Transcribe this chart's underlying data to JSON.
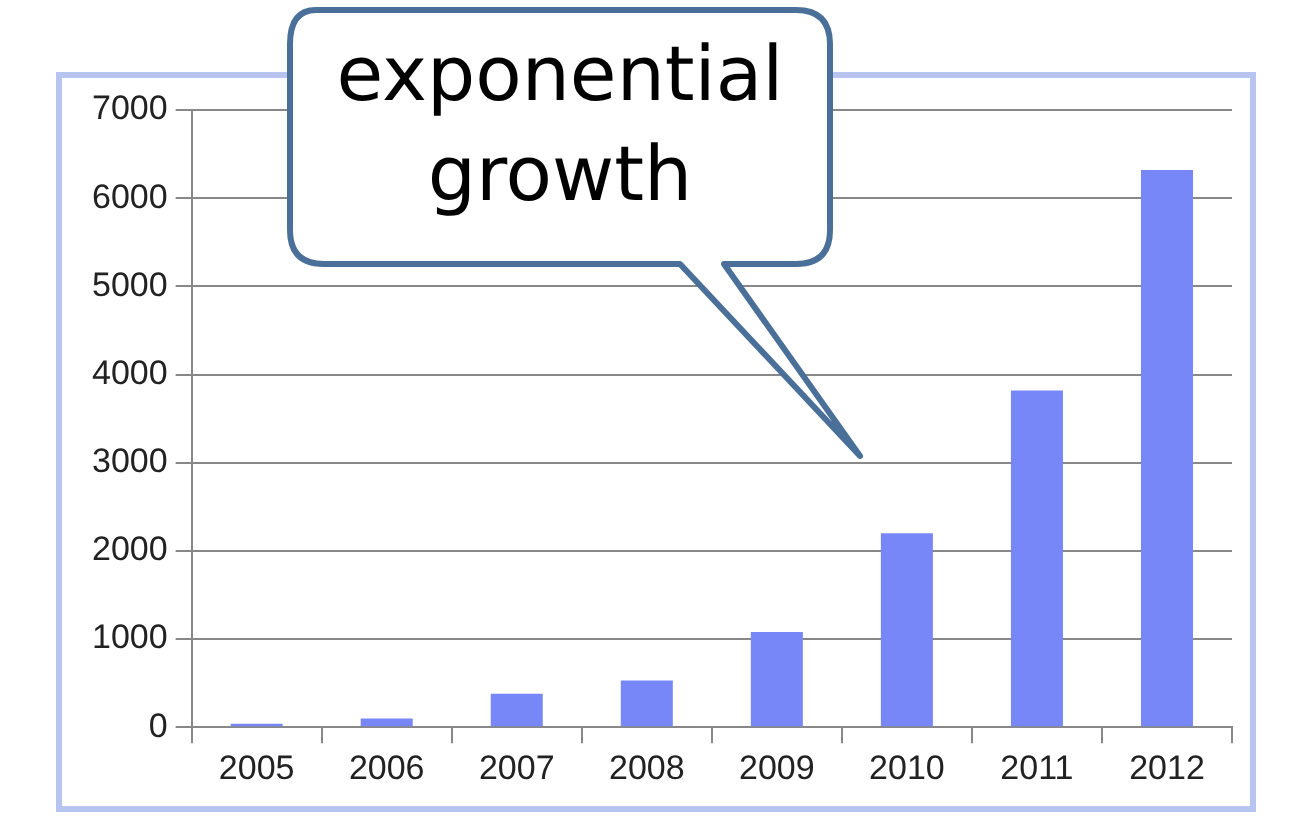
{
  "chart_data": {
    "type": "bar",
    "categories": [
      "2005",
      "2006",
      "2007",
      "2008",
      "2009",
      "2010",
      "2011",
      "2012"
    ],
    "values": [
      40,
      100,
      380,
      530,
      1080,
      2200,
      3820,
      6320
    ],
    "color": "#7787f7",
    "ylim": [
      0,
      7000
    ],
    "yticks": [
      0,
      1000,
      2000,
      3000,
      4000,
      5000,
      6000,
      7000
    ],
    "grid": "y",
    "annotations": [
      "exponential growth"
    ]
  }
}
